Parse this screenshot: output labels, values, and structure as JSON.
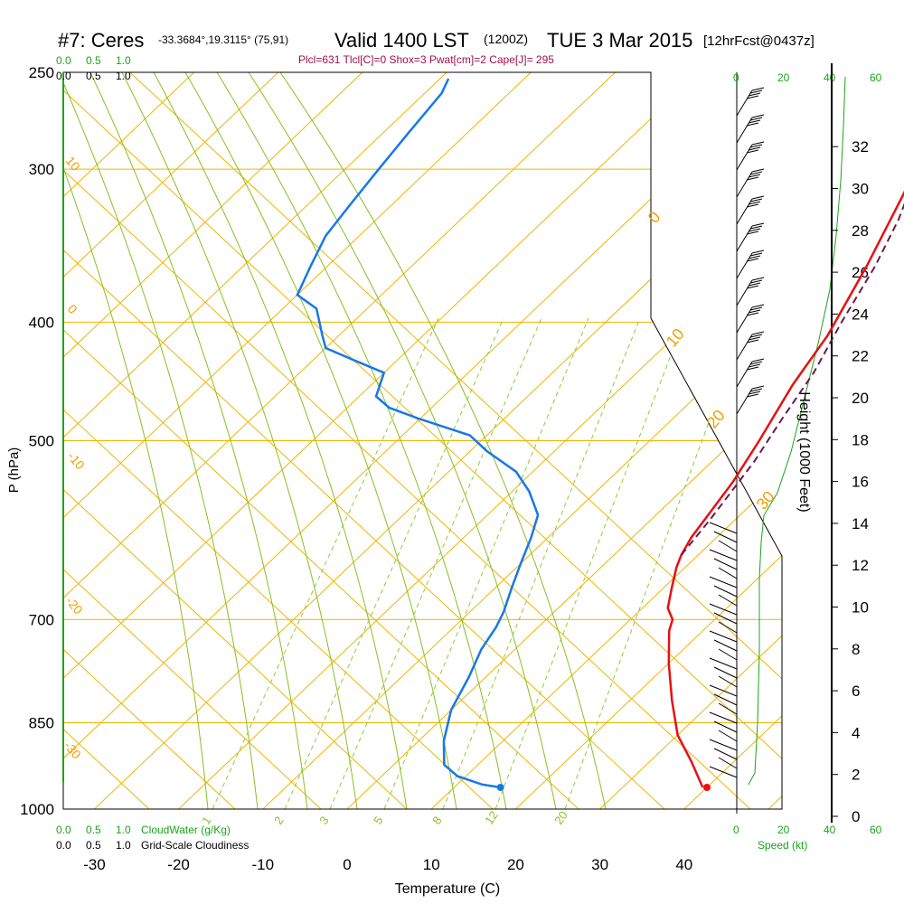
{
  "header": {
    "station": "#7: Ceres",
    "coords": "-33.3684°,19.3115° (75,91)",
    "valid": "Valid 1400 LST",
    "zulu": "(1200Z)",
    "date": "TUE 3 Mar 2015",
    "forecast": "[12hrFcst@0437z]",
    "params": "Plcl=631 Tlcl[C]=0 Shox=3 Pwat[cm]=2 Cape[J]= 295"
  },
  "legend": {
    "scale_a": [
      "0.0",
      "0.5",
      "1.0"
    ],
    "scale_b": [
      "0.0",
      "0.5",
      "1.0"
    ],
    "cloudwater": "CloudWater (g/Kg)",
    "cloudiness": "Grid-Scale Cloudiness"
  },
  "speed_axis": {
    "ticks": [
      "0",
      "20",
      "40",
      "60"
    ],
    "label": "Speed (kt)"
  },
  "chart_data": {
    "type": "line",
    "xlabel": "Temperature (C)",
    "ylabel": "P (hPa)",
    "y2label": "Height (1000 Feet)",
    "xlim": [
      -35,
      45
    ],
    "ylim": [
      1000,
      250
    ],
    "x_ticks": [
      "-30",
      "-20",
      "-10",
      "0",
      "10",
      "20",
      "30",
      "40"
    ],
    "p_ticks": [
      {
        "p": 1000,
        "label": "1000"
      },
      {
        "p": 850,
        "label": "850"
      },
      {
        "p": 700,
        "label": "700"
      },
      {
        "p": 500,
        "label": "500"
      },
      {
        "p": 400,
        "label": "400"
      },
      {
        "p": 300,
        "label": "300"
      },
      {
        "p": 250,
        "label": "250"
      }
    ],
    "height_ticks": [
      "0",
      "2",
      "4",
      "6",
      "8",
      "10",
      "12",
      "14",
      "16",
      "18",
      "20",
      "22",
      "24",
      "26",
      "28",
      "30",
      "32"
    ],
    "mixing_ratio_labels": [
      "1",
      "2",
      "3",
      "5",
      "8",
      "12",
      "20"
    ],
    "dry_adiabat_labels": [
      "10",
      "0",
      "-10",
      "-20",
      "-30"
    ],
    "moist_adiabat_labels": [
      "0",
      "10",
      "20",
      "30"
    ],
    "colors": {
      "temperature": "#e81010",
      "parcel": "#6a1a50",
      "dewpoint": "#1878e8",
      "isobar": "#f0b400",
      "dry_adiabat": "#f0b400",
      "moist_adiabat": "#88c020",
      "mixing_ratio": "#90cc30",
      "cloud": "#1aa51a"
    },
    "series": [
      {
        "kind": "temperature",
        "points": [
          [
            39.5,
            960
          ],
          [
            35,
            915
          ],
          [
            30,
            870
          ],
          [
            25,
            815
          ],
          [
            20,
            760
          ],
          [
            16,
            715
          ],
          [
            15,
            700
          ],
          [
            13,
            685
          ],
          [
            11,
            660
          ],
          [
            9,
            635
          ],
          [
            8,
            620
          ],
          [
            7,
            600
          ],
          [
            5,
            540
          ],
          [
            3,
            500
          ],
          [
            0,
            450
          ],
          [
            -2,
            410
          ],
          [
            -6,
            360
          ],
          [
            -10,
            320
          ],
          [
            -14,
            285
          ],
          [
            -18,
            260
          ],
          [
            -19,
            255
          ]
        ]
      },
      {
        "kind": "parcel",
        "points": [
          [
            8,
            620
          ],
          [
            7,
            580
          ],
          [
            5,
            520
          ],
          [
            3,
            480
          ],
          [
            1,
            440
          ],
          [
            -2,
            400
          ],
          [
            -5,
            360
          ],
          [
            -8,
            330
          ],
          [
            -12,
            300
          ],
          [
            -15,
            280
          ],
          [
            -18,
            256
          ]
        ]
      },
      {
        "kind": "dewpoint",
        "points": [
          [
            15.5,
            960
          ],
          [
            13,
            955
          ],
          [
            9,
            940
          ],
          [
            6,
            920
          ],
          [
            3,
            880
          ],
          [
            0,
            830
          ],
          [
            -2,
            780
          ],
          [
            -4,
            740
          ],
          [
            -5,
            710
          ],
          [
            -6,
            690
          ],
          [
            -8,
            660
          ],
          [
            -10,
            630
          ],
          [
            -12,
            600
          ],
          [
            -14,
            575
          ],
          [
            -18,
            550
          ],
          [
            -22,
            530
          ],
          [
            -28,
            510
          ],
          [
            -32,
            495
          ],
          [
            -40,
            480
          ],
          [
            -45,
            470
          ],
          [
            -48,
            460
          ],
          [
            -50,
            440
          ],
          [
            -55,
            430
          ],
          [
            -60,
            420
          ],
          [
            -62,
            410
          ],
          [
            -66,
            390
          ],
          [
            -70,
            380
          ],
          [
            -72,
            360
          ],
          [
            -74,
            340
          ],
          [
            -75,
            320
          ],
          [
            -76,
            300
          ],
          [
            -77,
            280
          ],
          [
            -78,
            260
          ],
          [
            -79,
            253
          ]
        ]
      }
    ],
    "surface_temperature": [
      40,
      960
    ],
    "surface_dewpoint": [
      15.5,
      960
    ]
  }
}
